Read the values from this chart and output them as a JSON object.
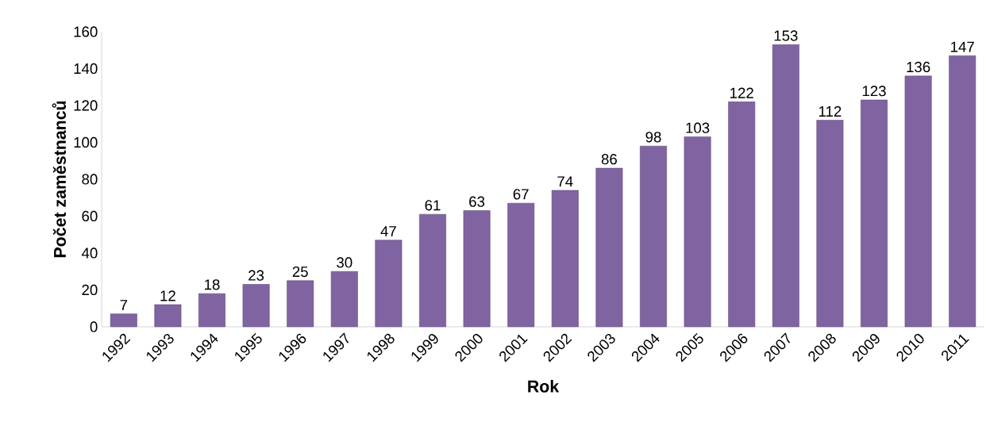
{
  "chart_data": {
    "type": "bar",
    "xlabel": "Rok",
    "ylabel": "Počet zaměstnanců",
    "categories": [
      "1992",
      "1993",
      "1994",
      "1995",
      "1996",
      "1997",
      "1998",
      "1999",
      "2000",
      "2001",
      "2002",
      "2003",
      "2004",
      "2005",
      "2006",
      "2007",
      "2008",
      "2009",
      "2010",
      "2011"
    ],
    "values": [
      7,
      12,
      18,
      23,
      25,
      30,
      47,
      61,
      63,
      67,
      74,
      86,
      98,
      103,
      122,
      153,
      112,
      123,
      136,
      147
    ],
    "color": "#8064a2",
    "ylim": [
      0,
      160
    ],
    "yticks": [
      0,
      20,
      40,
      60,
      80,
      100,
      120,
      140,
      160
    ],
    "data_labels": true
  }
}
